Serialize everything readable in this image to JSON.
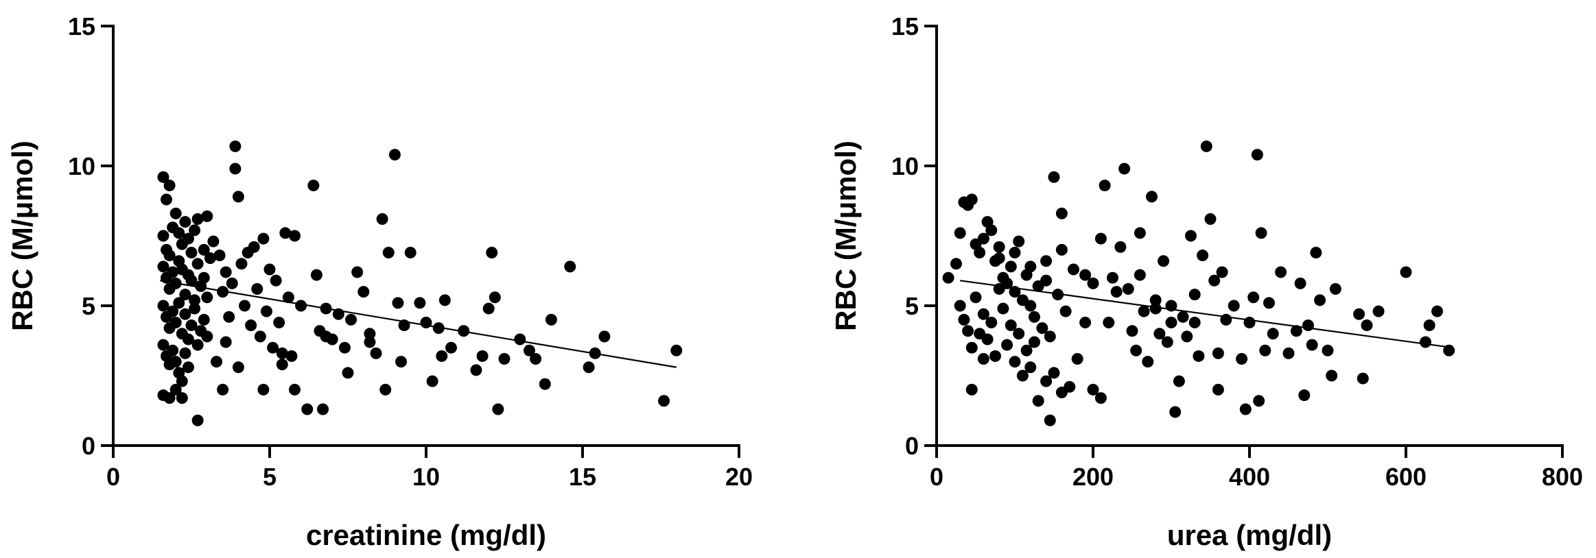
{
  "chart_data": [
    {
      "type": "scatter",
      "title": "",
      "xlabel": "creatinine (mg/dl)",
      "ylabel": "RBC (M/μmol)",
      "xlim": [
        0,
        20
      ],
      "ylim": [
        0,
        15
      ],
      "xticks": [
        "0",
        "5",
        "10",
        "15",
        "20"
      ],
      "yticks": [
        "0",
        "5",
        "10",
        "15"
      ],
      "fit_line": {
        "x": [
          1.5,
          18.0
        ],
        "y": [
          5.9,
          2.8
        ]
      },
      "points": [
        [
          1.6,
          9.6
        ],
        [
          1.7,
          8.8
        ],
        [
          1.8,
          9.3
        ],
        [
          1.6,
          7.5
        ],
        [
          1.7,
          7.0
        ],
        [
          1.8,
          6.8
        ],
        [
          1.9,
          7.8
        ],
        [
          2.0,
          8.3
        ],
        [
          2.1,
          7.6
        ],
        [
          2.2,
          7.2
        ],
        [
          2.3,
          8.0
        ],
        [
          2.4,
          7.4
        ],
        [
          2.5,
          6.9
        ],
        [
          2.6,
          7.7
        ],
        [
          2.7,
          8.1
        ],
        [
          1.6,
          6.4
        ],
        [
          1.7,
          6.0
        ],
        [
          1.8,
          5.6
        ],
        [
          1.9,
          6.2
        ],
        [
          2.0,
          5.8
        ],
        [
          2.1,
          6.6
        ],
        [
          2.2,
          6.3
        ],
        [
          2.3,
          5.4
        ],
        [
          2.4,
          6.1
        ],
        [
          2.5,
          5.9
        ],
        [
          2.6,
          5.2
        ],
        [
          2.7,
          6.5
        ],
        [
          2.8,
          5.7
        ],
        [
          2.9,
          6.0
        ],
        [
          3.0,
          5.3
        ],
        [
          1.6,
          5.0
        ],
        [
          1.7,
          4.6
        ],
        [
          1.8,
          4.2
        ],
        [
          1.9,
          4.8
        ],
        [
          2.0,
          4.4
        ],
        [
          2.1,
          5.1
        ],
        [
          2.2,
          4.0
        ],
        [
          2.3,
          4.7
        ],
        [
          2.4,
          3.8
        ],
        [
          2.5,
          4.3
        ],
        [
          2.6,
          4.9
        ],
        [
          2.7,
          3.6
        ],
        [
          2.8,
          4.1
        ],
        [
          2.9,
          4.5
        ],
        [
          3.0,
          3.9
        ],
        [
          1.6,
          3.6
        ],
        [
          1.7,
          3.2
        ],
        [
          1.8,
          2.9
        ],
        [
          1.9,
          3.4
        ],
        [
          2.0,
          3.0
        ],
        [
          2.1,
          2.6
        ],
        [
          2.2,
          2.3
        ],
        [
          2.3,
          3.3
        ],
        [
          2.4,
          2.8
        ],
        [
          1.6,
          1.8
        ],
        [
          1.8,
          1.7
        ],
        [
          2.0,
          2.0
        ],
        [
          2.2,
          1.7
        ],
        [
          2.7,
          0.9
        ],
        [
          3.0,
          8.2
        ],
        [
          3.2,
          7.3
        ],
        [
          3.4,
          6.8
        ],
        [
          3.5,
          5.5
        ],
        [
          3.6,
          6.2
        ],
        [
          3.7,
          4.6
        ],
        [
          3.8,
          5.8
        ],
        [
          3.9,
          10.7
        ],
        [
          3.9,
          9.9
        ],
        [
          4.0,
          8.9
        ],
        [
          4.1,
          6.5
        ],
        [
          4.2,
          5.0
        ],
        [
          4.3,
          6.9
        ],
        [
          4.4,
          4.3
        ],
        [
          4.5,
          7.1
        ],
        [
          4.6,
          5.6
        ],
        [
          4.7,
          3.9
        ],
        [
          4.8,
          7.4
        ],
        [
          4.9,
          4.8
        ],
        [
          5.0,
          6.3
        ],
        [
          5.1,
          3.5
        ],
        [
          5.2,
          5.9
        ],
        [
          5.3,
          4.4
        ],
        [
          5.4,
          2.9
        ],
        [
          5.5,
          7.6
        ],
        [
          5.6,
          5.3
        ],
        [
          5.7,
          3.2
        ],
        [
          5.8,
          7.5
        ],
        [
          6.0,
          5.0
        ],
        [
          6.2,
          1.3
        ],
        [
          6.4,
          9.3
        ],
        [
          6.5,
          6.1
        ],
        [
          6.6,
          4.1
        ],
        [
          6.7,
          1.3
        ],
        [
          6.8,
          4.9
        ],
        [
          7.0,
          3.8
        ],
        [
          7.2,
          4.7
        ],
        [
          7.4,
          3.5
        ],
        [
          7.6,
          4.5
        ],
        [
          7.8,
          6.2
        ],
        [
          8.0,
          5.5
        ],
        [
          8.2,
          4.0
        ],
        [
          8.4,
          3.3
        ],
        [
          8.6,
          8.1
        ],
        [
          8.8,
          6.9
        ],
        [
          9.0,
          10.4
        ],
        [
          9.1,
          5.1
        ],
        [
          9.2,
          3.0
        ],
        [
          9.5,
          6.9
        ],
        [
          9.8,
          5.1
        ],
        [
          10.0,
          4.4
        ],
        [
          10.2,
          2.3
        ],
        [
          10.4,
          4.2
        ],
        [
          10.6,
          5.2
        ],
        [
          10.8,
          3.5
        ],
        [
          11.2,
          4.1
        ],
        [
          11.6,
          2.7
        ],
        [
          11.8,
          3.2
        ],
        [
          12.0,
          4.9
        ],
        [
          12.2,
          5.3
        ],
        [
          12.1,
          6.9
        ],
        [
          12.3,
          1.3
        ],
        [
          12.5,
          3.1
        ],
        [
          13.0,
          3.8
        ],
        [
          13.3,
          3.4
        ],
        [
          13.5,
          3.1
        ],
        [
          13.8,
          2.2
        ],
        [
          14.0,
          4.5
        ],
        [
          14.6,
          6.4
        ],
        [
          15.2,
          2.8
        ],
        [
          15.4,
          3.3
        ],
        [
          15.7,
          3.9
        ],
        [
          17.6,
          1.6
        ],
        [
          18.0,
          3.4
        ],
        [
          2.9,
          7.0
        ],
        [
          3.1,
          6.7
        ],
        [
          3.3,
          3.0
        ],
        [
          3.5,
          2.0
        ],
        [
          3.6,
          3.7
        ],
        [
          4.0,
          2.8
        ],
        [
          4.8,
          2.0
        ],
        [
          5.4,
          3.3
        ],
        [
          5.8,
          2.0
        ],
        [
          6.8,
          3.9
        ],
        [
          7.5,
          2.6
        ],
        [
          8.2,
          3.7
        ],
        [
          8.7,
          2.0
        ],
        [
          9.3,
          4.3
        ],
        [
          10.5,
          3.2
        ]
      ]
    },
    {
      "type": "scatter",
      "title": "",
      "xlabel": "urea (mg/dl)",
      "ylabel": "RBC (M/μmol)",
      "xlim": [
        0,
        800
      ],
      "ylim": [
        0,
        15
      ],
      "xticks": [
        "0",
        "200",
        "400",
        "600",
        "800"
      ],
      "yticks": [
        "0",
        "5",
        "10",
        "15"
      ],
      "fit_line": {
        "x": [
          30,
          660
        ],
        "y": [
          5.9,
          3.5
        ]
      },
      "points": [
        [
          15,
          6.0
        ],
        [
          25,
          6.5
        ],
        [
          30,
          7.6
        ],
        [
          35,
          8.7
        ],
        [
          40,
          8.6
        ],
        [
          45,
          8.8
        ],
        [
          50,
          7.2
        ],
        [
          55,
          6.9
        ],
        [
          60,
          7.4
        ],
        [
          65,
          8.0
        ],
        [
          70,
          7.7
        ],
        [
          75,
          6.6
        ],
        [
          80,
          7.1
        ],
        [
          85,
          6.0
        ],
        [
          90,
          5.8
        ],
        [
          95,
          6.4
        ],
        [
          100,
          5.5
        ],
        [
          105,
          7.3
        ],
        [
          110,
          5.2
        ],
        [
          115,
          6.1
        ],
        [
          120,
          5.0
        ],
        [
          125,
          4.6
        ],
        [
          130,
          5.7
        ],
        [
          135,
          4.2
        ],
        [
          140,
          5.9
        ],
        [
          145,
          3.9
        ],
        [
          150,
          9.6
        ],
        [
          155,
          5.4
        ],
        [
          160,
          8.3
        ],
        [
          165,
          4.8
        ],
        [
          30,
          5.0
        ],
        [
          35,
          4.5
        ],
        [
          40,
          4.1
        ],
        [
          45,
          3.5
        ],
        [
          50,
          5.3
        ],
        [
          55,
          4.0
        ],
        [
          60,
          4.7
        ],
        [
          65,
          3.8
        ],
        [
          70,
          4.4
        ],
        [
          75,
          3.2
        ],
        [
          80,
          5.6
        ],
        [
          85,
          4.9
        ],
        [
          90,
          3.6
        ],
        [
          95,
          4.3
        ],
        [
          100,
          3.0
        ],
        [
          105,
          4.0
        ],
        [
          110,
          2.5
        ],
        [
          115,
          3.4
        ],
        [
          120,
          2.8
        ],
        [
          125,
          3.7
        ],
        [
          130,
          1.6
        ],
        [
          140,
          2.3
        ],
        [
          145,
          0.9
        ],
        [
          150,
          2.6
        ],
        [
          160,
          1.9
        ],
        [
          170,
          2.1
        ],
        [
          180,
          3.1
        ],
        [
          190,
          4.4
        ],
        [
          200,
          2.0
        ],
        [
          210,
          1.7
        ],
        [
          215,
          9.3
        ],
        [
          225,
          6.0
        ],
        [
          235,
          7.1
        ],
        [
          240,
          9.9
        ],
        [
          245,
          5.6
        ],
        [
          250,
          4.1
        ],
        [
          255,
          3.4
        ],
        [
          260,
          7.6
        ],
        [
          265,
          4.8
        ],
        [
          270,
          3.0
        ],
        [
          275,
          8.9
        ],
        [
          280,
          5.2
        ],
        [
          285,
          4.0
        ],
        [
          290,
          6.6
        ],
        [
          295,
          3.7
        ],
        [
          300,
          5.0
        ],
        [
          305,
          1.2
        ],
        [
          310,
          2.3
        ],
        [
          315,
          4.6
        ],
        [
          320,
          3.9
        ],
        [
          325,
          7.5
        ],
        [
          330,
          5.4
        ],
        [
          335,
          3.2
        ],
        [
          340,
          6.8
        ],
        [
          345,
          10.7
        ],
        [
          350,
          8.1
        ],
        [
          355,
          5.9
        ],
        [
          360,
          3.3
        ],
        [
          365,
          6.2
        ],
        [
          370,
          4.5
        ],
        [
          380,
          5.0
        ],
        [
          390,
          3.1
        ],
        [
          395,
          1.3
        ],
        [
          400,
          4.4
        ],
        [
          405,
          5.3
        ],
        [
          410,
          10.4
        ],
        [
          412,
          1.6
        ],
        [
          415,
          7.6
        ],
        [
          420,
          3.4
        ],
        [
          425,
          5.1
        ],
        [
          430,
          4.0
        ],
        [
          440,
          6.2
        ],
        [
          450,
          3.3
        ],
        [
          460,
          4.1
        ],
        [
          465,
          5.8
        ],
        [
          470,
          1.8
        ],
        [
          475,
          4.3
        ],
        [
          480,
          3.6
        ],
        [
          485,
          6.9
        ],
        [
          490,
          5.2
        ],
        [
          500,
          3.4
        ],
        [
          505,
          2.5
        ],
        [
          510,
          5.6
        ],
        [
          540,
          4.7
        ],
        [
          545,
          2.4
        ],
        [
          550,
          4.3
        ],
        [
          565,
          4.8
        ],
        [
          600,
          6.2
        ],
        [
          625,
          3.7
        ],
        [
          630,
          4.3
        ],
        [
          640,
          4.8
        ],
        [
          655,
          3.4
        ],
        [
          45,
          2.0
        ],
        [
          60,
          3.1
        ],
        [
          80,
          6.7
        ],
        [
          100,
          6.9
        ],
        [
          120,
          6.4
        ],
        [
          140,
          6.6
        ],
        [
          160,
          7.0
        ],
        [
          175,
          6.3
        ],
        [
          190,
          6.1
        ],
        [
          200,
          5.8
        ],
        [
          210,
          7.4
        ],
        [
          220,
          4.4
        ],
        [
          230,
          5.5
        ],
        [
          260,
          6.1
        ],
        [
          280,
          4.9
        ],
        [
          300,
          4.4
        ],
        [
          330,
          4.4
        ],
        [
          360,
          2.0
        ]
      ]
    }
  ]
}
